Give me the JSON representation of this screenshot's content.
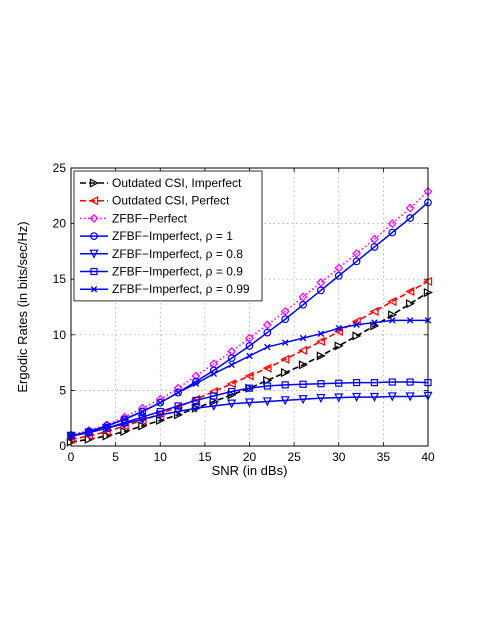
{
  "chart_data": {
    "type": "line",
    "title": "",
    "xlabel": "SNR (in dBs)",
    "ylabel": "Ergodic Rates (in bits/sec/Hz)",
    "xlim": [
      0,
      40
    ],
    "ylim": [
      0,
      25
    ],
    "xticks": [
      0,
      5,
      10,
      15,
      20,
      25,
      30,
      35,
      40
    ],
    "yticks": [
      0,
      5,
      10,
      15,
      20,
      25
    ],
    "grid": true,
    "legend_position": "top-left",
    "x": [
      0,
      2,
      4,
      6,
      8,
      10,
      12,
      14,
      16,
      18,
      20,
      22,
      24,
      26,
      28,
      30,
      32,
      34,
      36,
      38,
      40
    ],
    "series": [
      {
        "name": "Outdated CSI, Imperfect",
        "color": "#000000",
        "dash": "dashed",
        "marker": "triangle-right",
        "values": [
          0.35,
          0.6,
          0.9,
          1.3,
          1.8,
          2.3,
          2.8,
          3.4,
          4.0,
          4.6,
          5.2,
          5.9,
          6.6,
          7.3,
          8.1,
          9.0,
          9.9,
          10.8,
          11.8,
          12.8,
          13.8
        ]
      },
      {
        "name": "Outdated CSI, Perfect",
        "color": "#ff0000",
        "dash": "dashed",
        "marker": "triangle-left",
        "values": [
          0.6,
          0.9,
          1.3,
          1.8,
          2.3,
          2.9,
          3.5,
          4.2,
          4.9,
          5.6,
          6.3,
          7.0,
          7.8,
          8.6,
          9.4,
          10.3,
          11.2,
          12.1,
          13.0,
          13.9,
          14.8
        ]
      },
      {
        "name": "ZFBF−Perfect",
        "color": "#ff00ff",
        "dash": "dotted",
        "marker": "diamond",
        "values": [
          1.0,
          1.4,
          1.9,
          2.6,
          3.4,
          4.2,
          5.2,
          6.3,
          7.4,
          8.5,
          9.7,
          10.9,
          12.1,
          13.4,
          14.7,
          16.0,
          17.3,
          18.6,
          20.0,
          21.4,
          22.9
        ]
      },
      {
        "name": "ZFBF−Imperfect, ρ = 1",
        "color": "#0000ff",
        "dash": "solid",
        "marker": "circle",
        "values": [
          0.9,
          1.3,
          1.8,
          2.4,
          3.1,
          3.9,
          4.8,
          5.8,
          6.8,
          7.9,
          9.0,
          10.2,
          11.4,
          12.7,
          14.0,
          15.3,
          16.6,
          17.9,
          19.2,
          20.5,
          21.9
        ]
      },
      {
        "name": "ZFBF−Imperfect, ρ = 0.8",
        "color": "#0000ff",
        "dash": "solid",
        "marker": "triangle-down",
        "values": [
          0.9,
          1.2,
          1.6,
          2.0,
          2.4,
          2.8,
          3.1,
          3.4,
          3.6,
          3.8,
          3.9,
          4.0,
          4.1,
          4.2,
          4.3,
          4.35,
          4.4,
          4.4,
          4.45,
          4.45,
          4.5
        ]
      },
      {
        "name": "ZFBF−Imperfect, ρ = 0.9",
        "color": "#0000ff",
        "dash": "solid",
        "marker": "square",
        "values": [
          0.9,
          1.2,
          1.6,
          2.1,
          2.6,
          3.1,
          3.6,
          4.1,
          4.5,
          4.9,
          5.2,
          5.4,
          5.5,
          5.55,
          5.6,
          5.65,
          5.7,
          5.7,
          5.75,
          5.75,
          5.7
        ]
      },
      {
        "name": "ZFBF−Imperfect, ρ = 0.99",
        "color": "#0000ff",
        "dash": "solid",
        "marker": "x",
        "values": [
          0.9,
          1.3,
          1.8,
          2.4,
          3.1,
          3.9,
          4.8,
          5.6,
          6.5,
          7.3,
          8.1,
          8.9,
          9.3,
          9.7,
          10.1,
          10.6,
          10.9,
          11.1,
          11.3,
          11.3,
          11.3
        ]
      }
    ]
  }
}
